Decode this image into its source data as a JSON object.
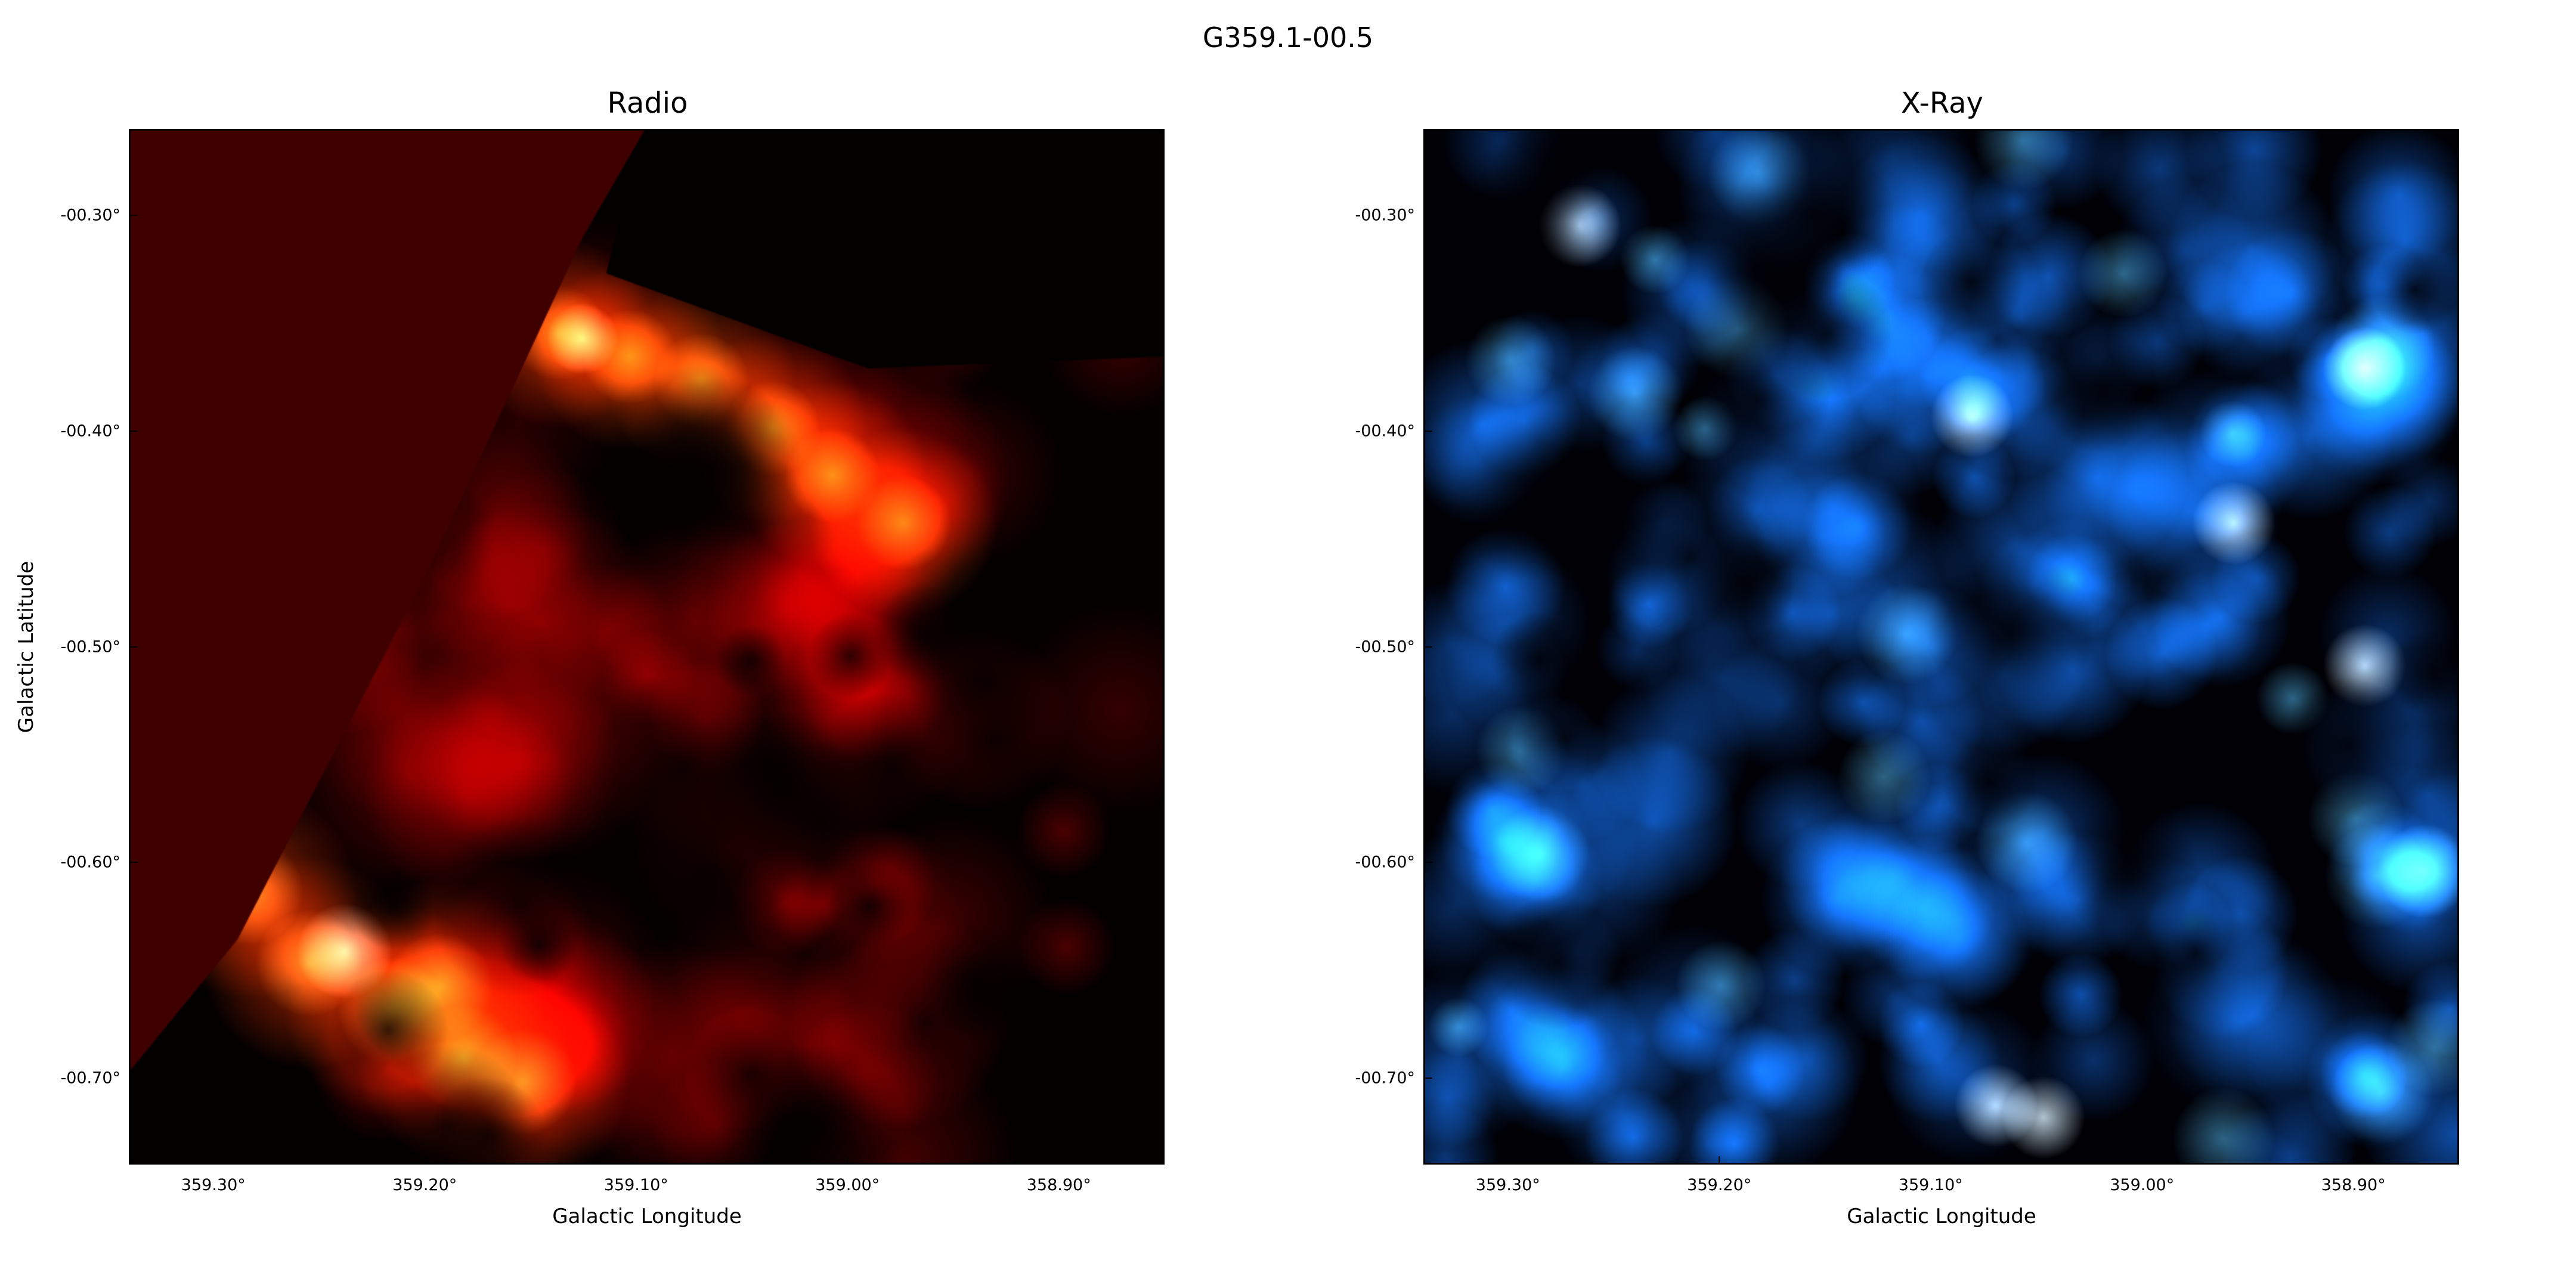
{
  "chart_data": {
    "type": "heatmap",
    "title": "G359.1-00.5",
    "panels": [
      {
        "title": "Radio",
        "colormap": "hot (black-red-orange-white)",
        "accent_color": "#c81400",
        "xlabel": "Galactic Longitude",
        "ylabel": "Galactic Latitude",
        "xlim": [
          359.34,
          358.85
        ],
        "ylim": [
          -0.74,
          -0.26
        ],
        "xticks": [
          359.3,
          359.2,
          359.1,
          359.0,
          358.9
        ],
        "xtick_labels": [
          "359.30°",
          "359.20°",
          "359.10°",
          "359.00°",
          "358.90°"
        ],
        "yticks": [
          -0.3,
          -0.4,
          -0.5,
          -0.6,
          -0.7
        ],
        "ytick_labels": [
          "-00.30°",
          "-00.40°",
          "-00.50°",
          "-00.60°",
          "-00.70°"
        ]
      },
      {
        "title": "X-Ray",
        "colormap": "blue (black-blue-cyan-white)",
        "accent_color": "#1e90ff",
        "xlabel": "Galactic Longitude",
        "ylabel": "",
        "xlim": [
          359.34,
          358.85
        ],
        "ylim": [
          -0.74,
          -0.26
        ],
        "xticks": [
          359.3,
          359.2,
          359.1,
          359.0,
          358.9
        ],
        "xtick_labels": [
          "359.30°",
          "359.20°",
          "359.10°",
          "359.00°",
          "358.90°"
        ],
        "yticks": [
          -0.3,
          -0.4,
          -0.5,
          -0.6,
          -0.7
        ],
        "ytick_labels": [
          "-00.30°",
          "-00.40°",
          "-00.50°",
          "-00.60°",
          "-00.70°"
        ]
      }
    ],
    "grid": false
  }
}
